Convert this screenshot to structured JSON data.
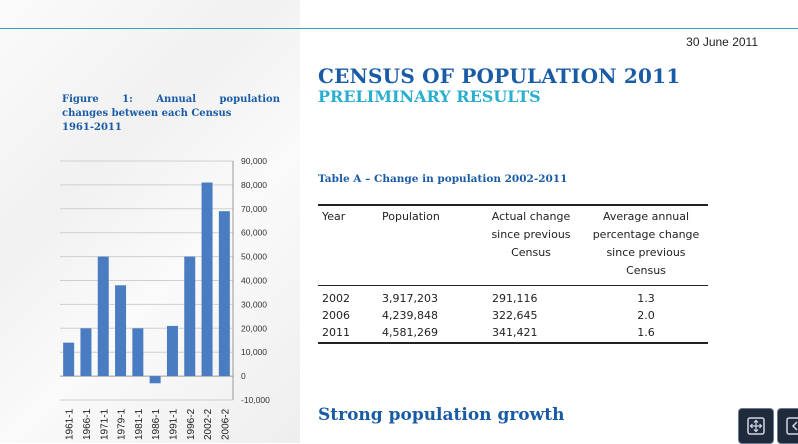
{
  "document": {
    "date": "30 June 2011",
    "title": "CENSUS OF POPULATION 2011",
    "subtitle": "PRELIMINARY RESULTS",
    "section_heading": "Strong population growth"
  },
  "figure": {
    "caption_prefix": "Figure",
    "caption_number": "1:",
    "caption_word": "Annual",
    "caption_line1_end": "population",
    "caption_line2": "changes between each Census",
    "caption_line3": "1961-2011"
  },
  "chart_data": {
    "type": "bar",
    "title": "",
    "xlabel": "",
    "ylabel": "",
    "categories": [
      "1961-1",
      "1966-1",
      "1971-1",
      "1979-1",
      "1981-1",
      "1986-1",
      "1991-1",
      "1996-2",
      "2002-2",
      "2006-2"
    ],
    "values": [
      14000,
      20000,
      50000,
      38000,
      20000,
      -3000,
      21000,
      50000,
      81000,
      69000
    ],
    "ylim": [
      -10000,
      90000
    ],
    "yticks": [
      -10000,
      0,
      10000,
      20000,
      30000,
      40000,
      50000,
      60000,
      70000,
      80000,
      90000
    ],
    "ytick_labels": [
      "-10,000",
      "0",
      "10,000",
      "20,000",
      "30,000",
      "40,000",
      "50,000",
      "60,000",
      "70,000",
      "80,000",
      "90,000"
    ],
    "grid": true,
    "bar_color": "#4a7cc2"
  },
  "table": {
    "title": "Table A – Change in population 2002-2011",
    "headers": {
      "year": "Year",
      "population": "Population",
      "actual_change": "Actual change since previous Census",
      "average_change": "Average annual percentage change since previous Census"
    },
    "rows": [
      {
        "year": "2002",
        "population": "3,917,203",
        "actual_change": "291,116",
        "average_change": "1.3"
      },
      {
        "year": "2006",
        "population": "4,239,848",
        "actual_change": "322,645",
        "average_change": "2.0"
      },
      {
        "year": "2011",
        "population": "4,581,269",
        "actual_change": "341,421",
        "average_change": "1.6"
      }
    ]
  },
  "colors": {
    "accent": "#2aa7b8",
    "title_blue": "#1a5ba6",
    "subtitle_cyan": "#29aecf",
    "bar_blue": "#4a7cc2"
  },
  "viewer_controls": [
    {
      "icon": "fit-page-icon"
    },
    {
      "icon": "panel-toggle-icon"
    }
  ]
}
